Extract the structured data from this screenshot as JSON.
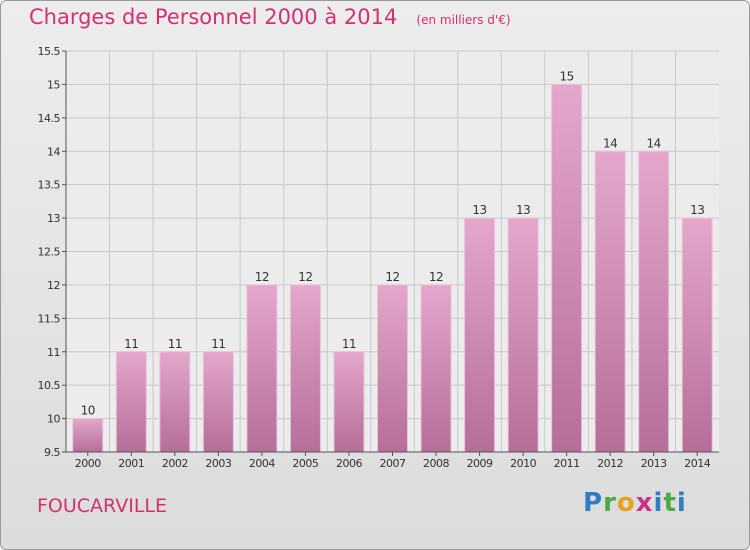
{
  "title": "Charges de Personnel 2000 à 2014",
  "subtitle": "(en milliers d'€)",
  "commune": "FOUCARVILLE",
  "logo_text": "Proxiti",
  "colors": {
    "accent": "#d2306e",
    "bar_top": "#e4a7cb",
    "bar_bottom": "#b56e98"
  },
  "chart_data": {
    "type": "bar",
    "categories": [
      "2000",
      "2001",
      "2002",
      "2003",
      "2004",
      "2005",
      "2006",
      "2007",
      "2008",
      "2009",
      "2010",
      "2011",
      "2012",
      "2013",
      "2014"
    ],
    "values": [
      10,
      11,
      11,
      11,
      12,
      12,
      11,
      12,
      12,
      13,
      13,
      15,
      14,
      14,
      13
    ],
    "data_labels": [
      "10",
      "11",
      "11",
      "11",
      "12",
      "12",
      "11",
      "12",
      "12",
      "13",
      "13",
      "15",
      "14",
      "14",
      "13"
    ],
    "title": "Charges de Personnel 2000 à 2014",
    "xlabel": "",
    "ylabel": "",
    "ylim": [
      9.5,
      15.5
    ],
    "yticks": [
      9.5,
      10,
      10.5,
      11,
      11.5,
      12,
      12.5,
      13,
      13.5,
      14,
      14.5,
      15,
      15.5
    ],
    "ytick_labels": [
      "9.5",
      "10",
      "10.5",
      "11",
      "11.5",
      "12",
      "12.5",
      "13",
      "13.5",
      "14",
      "14.5",
      "15",
      "15.5"
    ],
    "grid": true,
    "legend": "none"
  }
}
